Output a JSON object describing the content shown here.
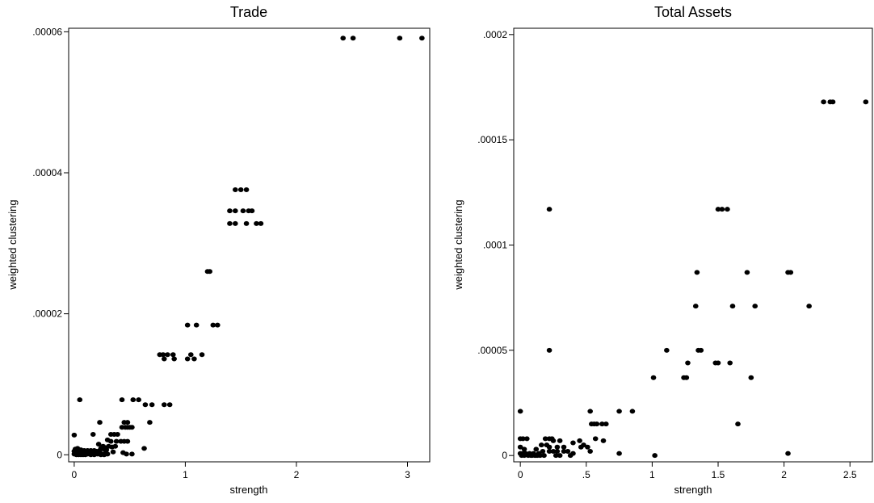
{
  "chart_data": [
    {
      "type": "scatter",
      "title": "Trade",
      "xlabel": "strength",
      "ylabel": "weighted clustering",
      "xlim": [
        -0.05,
        3.2
      ],
      "ylim": [
        -1e-06,
        6.05e-05
      ],
      "xticks": [
        {
          "v": 0,
          "label": "0"
        },
        {
          "v": 1,
          "label": "1"
        },
        {
          "v": 2,
          "label": "2"
        },
        {
          "v": 3,
          "label": "3"
        }
      ],
      "yticks": [
        {
          "v": 0,
          "label": "0"
        },
        {
          "v": 2e-05,
          "label": ".00002"
        },
        {
          "v": 4e-05,
          "label": ".00004"
        },
        {
          "v": 6e-05,
          "label": ".00006"
        }
      ],
      "grid": false,
      "points": [
        [
          2.42,
          5.91e-05
        ],
        [
          2.51,
          5.91e-05
        ],
        [
          2.93,
          5.91e-05
        ],
        [
          3.13,
          5.91e-05
        ],
        [
          1.45,
          3.76e-05
        ],
        [
          1.5,
          3.76e-05
        ],
        [
          1.55,
          3.76e-05
        ],
        [
          1.4,
          3.46e-05
        ],
        [
          1.45,
          3.46e-05
        ],
        [
          1.52,
          3.46e-05
        ],
        [
          1.57,
          3.46e-05
        ],
        [
          1.6,
          3.46e-05
        ],
        [
          1.4,
          3.28e-05
        ],
        [
          1.45,
          3.28e-05
        ],
        [
          1.55,
          3.28e-05
        ],
        [
          1.64,
          3.28e-05
        ],
        [
          1.68,
          3.28e-05
        ],
        [
          1.2,
          2.6e-05
        ],
        [
          1.22,
          2.6e-05
        ],
        [
          1.02,
          1.84e-05
        ],
        [
          1.1,
          1.84e-05
        ],
        [
          1.25,
          1.84e-05
        ],
        [
          1.29,
          1.84e-05
        ],
        [
          0.77,
          1.42e-05
        ],
        [
          0.8,
          1.42e-05
        ],
        [
          0.84,
          1.42e-05
        ],
        [
          0.89,
          1.42e-05
        ],
        [
          1.05,
          1.42e-05
        ],
        [
          1.15,
          1.42e-05
        ],
        [
          0.81,
          1.36e-05
        ],
        [
          0.9,
          1.36e-05
        ],
        [
          1.02,
          1.36e-05
        ],
        [
          1.08,
          1.36e-05
        ],
        [
          0.81,
          7.1e-06
        ],
        [
          0.86,
          7.1e-06
        ],
        [
          0.05,
          7.8e-06
        ],
        [
          0.43,
          7.8e-06
        ],
        [
          0.53,
          7.8e-06
        ],
        [
          0.58,
          7.8e-06
        ],
        [
          0.64,
          7.1e-06
        ],
        [
          0.7,
          7.1e-06
        ],
        [
          0.68,
          4.6e-06
        ],
        [
          0.23,
          4.6e-06
        ],
        [
          0.45,
          4.6e-06
        ],
        [
          0.48,
          4.6e-06
        ],
        [
          0.43,
          3.9e-06
        ],
        [
          0.46,
          3.9e-06
        ],
        [
          0.5,
          3.9e-06
        ],
        [
          0.52,
          3.9e-06
        ],
        [
          0.48,
          3.9e-06
        ],
        [
          0.0,
          2.8e-06
        ],
        [
          0.17,
          2.9e-06
        ],
        [
          0.33,
          2.9e-06
        ],
        [
          0.36,
          2.9e-06
        ],
        [
          0.39,
          2.9e-06
        ],
        [
          0.3,
          2.1e-06
        ],
        [
          0.33,
          1.9e-06
        ],
        [
          0.38,
          1.9e-06
        ],
        [
          0.42,
          1.9e-06
        ],
        [
          0.45,
          1.9e-06
        ],
        [
          0.48,
          1.9e-06
        ],
        [
          0.22,
          1.5e-06
        ],
        [
          0.26,
          1.2e-06
        ],
        [
          0.28,
          1e-06
        ],
        [
          0.31,
          1.2e-06
        ],
        [
          0.34,
          1.1e-06
        ],
        [
          0.37,
          1.2e-06
        ],
        [
          0.24,
          9e-07
        ],
        [
          0.27,
          8e-07
        ],
        [
          0.29,
          7e-07
        ],
        [
          0.12,
          6e-07
        ],
        [
          0.15,
          6e-07
        ],
        [
          0.18,
          6e-07
        ],
        [
          0.2,
          5e-07
        ],
        [
          0.23,
          6e-07
        ],
        [
          0.1,
          4e-07
        ],
        [
          0.13,
          3e-07
        ],
        [
          0.17,
          3e-07
        ],
        [
          0.21,
          4e-07
        ],
        [
          0.35,
          4e-07
        ],
        [
          0.44,
          3e-07
        ],
        [
          0.47,
          1e-07
        ],
        [
          0.52,
          1e-07
        ],
        [
          0.63,
          9e-07
        ],
        [
          0.0,
          5e-07
        ],
        [
          0.01,
          3e-07
        ],
        [
          0.02,
          2e-07
        ],
        [
          0.03,
          4e-07
        ],
        [
          0.04,
          2e-07
        ],
        [
          0.05,
          1e-07
        ],
        [
          0.06,
          3e-07
        ],
        [
          0.07,
          1e-07
        ],
        [
          0.08,
          2e-07
        ],
        [
          0.09,
          1e-07
        ],
        [
          0.11,
          2e-07
        ],
        [
          0.14,
          1e-07
        ],
        [
          0.16,
          2e-07
        ],
        [
          0.19,
          1e-07
        ],
        [
          0.22,
          2e-07
        ],
        [
          0.25,
          1e-07
        ],
        [
          0.28,
          2e-07
        ],
        [
          0.3,
          1e-07
        ],
        [
          0.0,
          1e-07
        ],
        [
          0.02,
          0.0
        ],
        [
          0.04,
          0.0
        ],
        [
          0.06,
          0.0
        ],
        [
          0.08,
          0.0
        ],
        [
          0.1,
          0.0
        ],
        [
          0.12,
          1e-07
        ],
        [
          0.15,
          0.0
        ],
        [
          0.18,
          0.0
        ],
        [
          0.21,
          1e-07
        ],
        [
          0.24,
          0.0
        ],
        [
          0.27,
          0.0
        ],
        [
          0.01,
          8e-07
        ],
        [
          0.03,
          9e-07
        ],
        [
          0.06,
          7e-07
        ],
        [
          0.09,
          6e-07
        ]
      ]
    },
    {
      "type": "scatter",
      "title": "Total Assets",
      "xlabel": "strength",
      "ylabel": "weighted clustering",
      "xlim": [
        -0.05,
        2.67
      ],
      "ylim": [
        -3e-06,
        0.000203
      ],
      "xticks": [
        {
          "v": 0,
          "label": "0"
        },
        {
          "v": 0.5,
          "label": ".5"
        },
        {
          "v": 1,
          "label": "1"
        },
        {
          "v": 1.5,
          "label": "1.5"
        },
        {
          "v": 2,
          "label": "2"
        },
        {
          "v": 2.5,
          "label": "2.5"
        }
      ],
      "yticks": [
        {
          "v": 0,
          "label": "0"
        },
        {
          "v": 5e-05,
          "label": ".00005"
        },
        {
          "v": 0.0001,
          "label": ".0001"
        },
        {
          "v": 0.00015,
          "label": ".00015"
        },
        {
          "v": 0.0002,
          "label": ".0002"
        }
      ],
      "grid": false,
      "points": [
        [
          2.3,
          0.000168
        ],
        [
          2.35,
          0.000168
        ],
        [
          2.37,
          0.000168
        ],
        [
          2.62,
          0.000168
        ],
        [
          0.22,
          0.000117
        ],
        [
          1.5,
          0.000117
        ],
        [
          1.53,
          0.000117
        ],
        [
          1.57,
          0.000117
        ],
        [
          1.34,
          8.7e-05
        ],
        [
          1.72,
          8.7e-05
        ],
        [
          2.03,
          8.7e-05
        ],
        [
          2.05,
          8.7e-05
        ],
        [
          1.33,
          7.1e-05
        ],
        [
          1.61,
          7.1e-05
        ],
        [
          1.78,
          7.1e-05
        ],
        [
          2.19,
          7.1e-05
        ],
        [
          0.22,
          5e-05
        ],
        [
          1.11,
          5e-05
        ],
        [
          1.35,
          5e-05
        ],
        [
          1.37,
          5e-05
        ],
        [
          1.27,
          4.4e-05
        ],
        [
          1.48,
          4.4e-05
        ],
        [
          1.5,
          4.4e-05
        ],
        [
          1.59,
          4.4e-05
        ],
        [
          1.01,
          3.7e-05
        ],
        [
          1.24,
          3.7e-05
        ],
        [
          1.26,
          3.7e-05
        ],
        [
          1.75,
          3.7e-05
        ],
        [
          0.0,
          2.1e-05
        ],
        [
          0.53,
          2.1e-05
        ],
        [
          0.75,
          2.1e-05
        ],
        [
          0.85,
          2.1e-05
        ],
        [
          0.54,
          1.5e-05
        ],
        [
          0.56,
          1.5e-05
        ],
        [
          0.58,
          1.5e-05
        ],
        [
          0.62,
          1.5e-05
        ],
        [
          0.65,
          1.5e-05
        ],
        [
          1.65,
          1.5e-05
        ],
        [
          0.0,
          8e-06
        ],
        [
          0.02,
          8e-06
        ],
        [
          0.05,
          8e-06
        ],
        [
          0.19,
          8e-06
        ],
        [
          0.22,
          8e-06
        ],
        [
          0.24,
          8e-06
        ],
        [
          0.25,
          7e-06
        ],
        [
          0.3,
          7e-06
        ],
        [
          0.4,
          6e-06
        ],
        [
          0.45,
          7e-06
        ],
        [
          0.57,
          8e-06
        ],
        [
          0.63,
          7e-06
        ],
        [
          0.16,
          5e-06
        ],
        [
          0.2,
          5e-06
        ],
        [
          0.22,
          4e-06
        ],
        [
          0.28,
          4e-06
        ],
        [
          0.33,
          4e-06
        ],
        [
          0.46,
          4e-06
        ],
        [
          0.48,
          5e-06
        ],
        [
          0.51,
          4e-06
        ],
        [
          0.0,
          4e-06
        ],
        [
          0.03,
          3e-06
        ],
        [
          0.12,
          3e-06
        ],
        [
          0.17,
          2e-06
        ],
        [
          0.22,
          2e-06
        ],
        [
          0.25,
          2e-06
        ],
        [
          0.28,
          2e-06
        ],
        [
          0.33,
          2e-06
        ],
        [
          0.36,
          2e-06
        ],
        [
          0.53,
          2e-06
        ],
        [
          0.75,
          1e-06
        ],
        [
          1.02,
          0.0
        ],
        [
          2.03,
          1e-06
        ],
        [
          0.0,
          1e-06
        ],
        [
          0.01,
          0.0
        ],
        [
          0.02,
          1e-06
        ],
        [
          0.03,
          0.0
        ],
        [
          0.04,
          1e-06
        ],
        [
          0.06,
          0.0
        ],
        [
          0.07,
          1e-06
        ],
        [
          0.08,
          0.0
        ],
        [
          0.09,
          0.0
        ],
        [
          0.1,
          1e-06
        ],
        [
          0.11,
          0.0
        ],
        [
          0.12,
          0.0
        ],
        [
          0.13,
          0.0
        ],
        [
          0.14,
          1e-06
        ],
        [
          0.15,
          0.0
        ],
        [
          0.18,
          0.0
        ],
        [
          0.27,
          0.0
        ],
        [
          0.3,
          0.0
        ],
        [
          0.38,
          0.0
        ],
        [
          0.4,
          1e-06
        ]
      ]
    }
  ]
}
